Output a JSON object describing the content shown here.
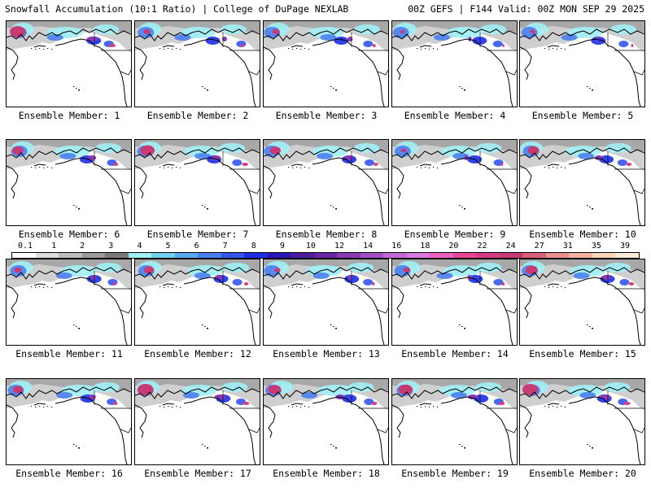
{
  "header": {
    "left": "Snowfall Accumulation (10:1 Ratio) | College of DuPage NEXLAB",
    "right": "00Z GEFS | F144 Valid: 00Z MON SEP 29 2025"
  },
  "members": [
    {
      "label": "Ensemble Member: 1"
    },
    {
      "label": "Ensemble Member: 2"
    },
    {
      "label": "Ensemble Member: 3"
    },
    {
      "label": "Ensemble Member: 4"
    },
    {
      "label": "Ensemble Member: 5"
    },
    {
      "label": "Ensemble Member: 6"
    },
    {
      "label": "Ensemble Member: 7"
    },
    {
      "label": "Ensemble Member: 8"
    },
    {
      "label": "Ensemble Member: 9"
    },
    {
      "label": "Ensemble Member: 10"
    },
    {
      "label": "Ensemble Member: 11"
    },
    {
      "label": "Ensemble Member: 12"
    },
    {
      "label": "Ensemble Member: 13"
    },
    {
      "label": "Ensemble Member: 14"
    },
    {
      "label": "Ensemble Member: 15"
    },
    {
      "label": "Ensemble Member: 16"
    },
    {
      "label": "Ensemble Member: 17"
    },
    {
      "label": "Ensemble Member: 18"
    },
    {
      "label": "Ensemble Member: 19"
    },
    {
      "label": "Ensemble Member: 20"
    }
  ],
  "colorbar": {
    "labels": [
      "0.1",
      "1",
      "2",
      "3",
      "4",
      "5",
      "6",
      "7",
      "8",
      "9",
      "10",
      "12",
      "14",
      "16",
      "18",
      "20",
      "22",
      "24",
      "27",
      "31",
      "35",
      "39"
    ],
    "colors": [
      "#ffffff",
      "#dcdcdc",
      "#bdbdbd",
      "#9a9a9a",
      "#7a7a7a",
      "#a0f0f5",
      "#70d0ee",
      "#5aa8ee",
      "#4a7ff0",
      "#3456f0",
      "#1c2ee6",
      "#2a16b4",
      "#4d1aa0",
      "#6a24a8",
      "#8a38b6",
      "#a350c4",
      "#c16ad6",
      "#d97ae0",
      "#ea62c0",
      "#e8469a",
      "#d83c82",
      "#c83a72",
      "#d8607a",
      "#eb8f8f",
      "#f4b39f",
      "#fad6ba",
      "#fdebd8"
    ],
    "colors_note": ""
  }
}
